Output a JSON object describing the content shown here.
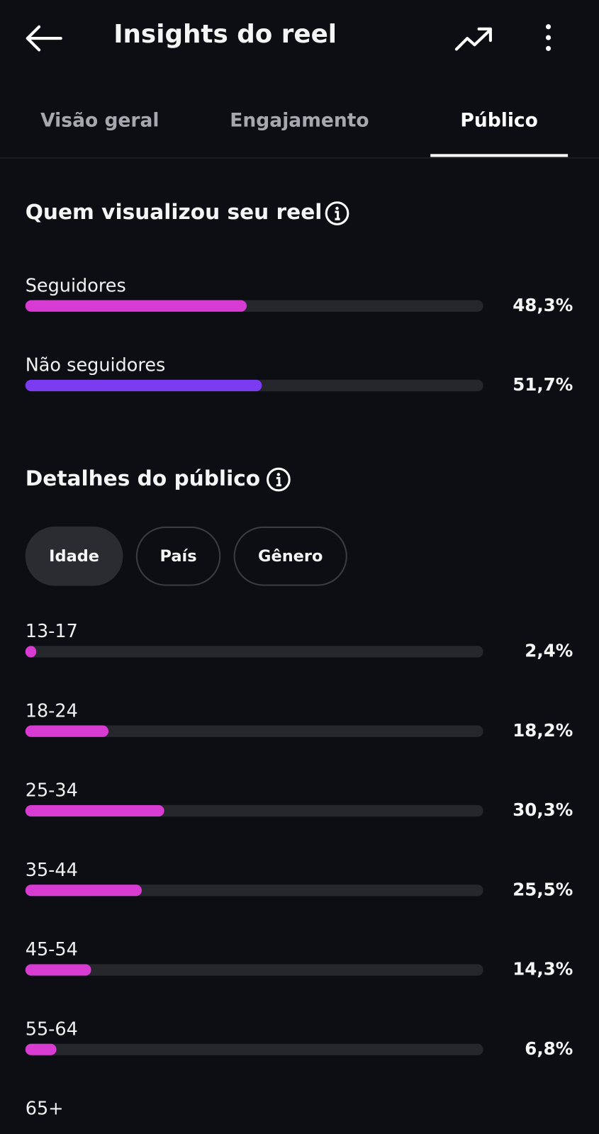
{
  "header": {
    "title": "Insights do reel"
  },
  "tabs": [
    "Visão geral",
    "Engajamento",
    "Público"
  ],
  "viewers": {
    "title": "Quem visualizou seu reel",
    "rows": [
      {
        "label": "Seguidores",
        "value": 48.3,
        "value_label": "48,3%",
        "color": "#d83bd1"
      },
      {
        "label": "Não seguidores",
        "value": 51.7,
        "value_label": "51,7%",
        "color": "#7a3bf1"
      }
    ]
  },
  "audience": {
    "title": "Detalhes do público",
    "filters": [
      "Idade",
      "País",
      "Gênero"
    ],
    "color": "#d83bd1",
    "rows": [
      {
        "label": "13-17",
        "value": 2.4,
        "value_label": "2,4%"
      },
      {
        "label": "18-24",
        "value": 18.2,
        "value_label": "18,2%"
      },
      {
        "label": "25-34",
        "value": 30.3,
        "value_label": "30,3%"
      },
      {
        "label": "35-44",
        "value": 25.5,
        "value_label": "25,5%"
      },
      {
        "label": "45-54",
        "value": 14.3,
        "value_label": "14,3%"
      },
      {
        "label": "55-64",
        "value": 6.8,
        "value_label": "6,8%"
      },
      {
        "label": "65+"
      }
    ]
  }
}
